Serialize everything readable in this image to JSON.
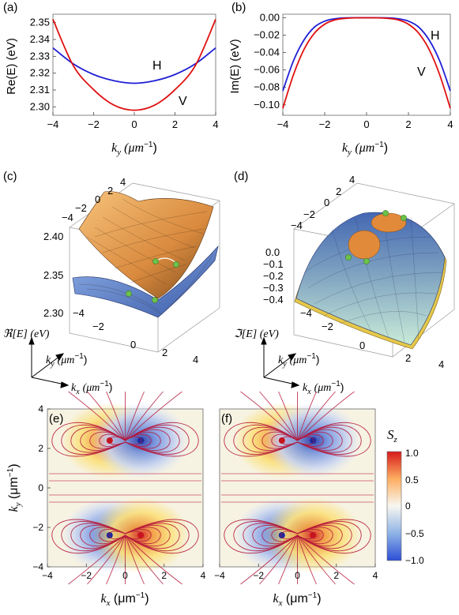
{
  "panels": {
    "a": {
      "label": "(a)",
      "ylabel": "Re(E) (eV)",
      "xlabel": "k",
      "xsub": "y",
      "xunit": "(μm",
      "xexp": "−1",
      "curve_labels": [
        "H",
        "V"
      ]
    },
    "b": {
      "label": "(b)",
      "ylabel": "Im(E) (eV)",
      "xlabel": "k",
      "xsub": "y",
      "xunit": "(μm",
      "xexp": "−1",
      "curve_labels": [
        "H",
        "V"
      ]
    },
    "c": {
      "label": "(c)",
      "zlabel": "ℜ[E] (eV)",
      "ky_label": "k",
      "ky_sub": "y",
      "kx_label": "k",
      "kx_sub": "x",
      "unit": "(μm",
      "exp": "−1",
      "z_ticks": [
        "2.40",
        "2.35",
        "2.30"
      ],
      "top_ticks": [
        "4",
        "2",
        "0",
        "−2",
        "−4"
      ],
      "front_ticks": [
        "−4",
        "−2",
        "0",
        "2",
        "4"
      ]
    },
    "d": {
      "label": "(d)",
      "zlabel": "ℑ[E] (eV)",
      "ky_label": "k",
      "ky_sub": "y",
      "kx_label": "k",
      "kx_sub": "x",
      "unit": "(μm",
      "exp": "−1",
      "z_ticks": [
        "0.0",
        "−0.1",
        "−0.2",
        "−0.3",
        "−0.4"
      ],
      "top_ticks": [
        "4",
        "2",
        "0",
        "−2",
        "−4"
      ],
      "front_ticks": [
        "−4",
        "−2",
        "0",
        "2",
        "4"
      ]
    },
    "e": {
      "label": "(e)",
      "ylabel": "k",
      "ysub": "y",
      "xlabel": "k",
      "xsub": "x",
      "unit": "(μm",
      "exp": "−1"
    },
    "f": {
      "label": "(f)",
      "xlabel": "k",
      "xsub": "x",
      "unit": "(μm",
      "exp": "−1"
    },
    "colorbar": {
      "title": "S",
      "sub": "z",
      "ticks": [
        "1.0",
        "0.5",
        "0",
        "−0.5",
        "−1.0"
      ],
      "colors": [
        "#d7191c",
        "#fdae61",
        "#ffffbf",
        "#abd9e9",
        "#2c7bb6"
      ]
    }
  },
  "chart_data": [
    {
      "type": "line",
      "panel": "a",
      "x": [
        -4,
        -3,
        -2,
        -1,
        0,
        1,
        2,
        3,
        4
      ],
      "xlim": [
        -4,
        4
      ],
      "ylim": [
        2.295,
        2.355
      ],
      "yticks": [
        "2.35",
        "2.34",
        "2.33",
        "2.32",
        "2.31",
        "2.30"
      ],
      "xticks": [
        "−4",
        "−2",
        "0",
        "2",
        "4"
      ],
      "series": [
        {
          "name": "H",
          "color": "#1f1fd6",
          "values": [
            2.335,
            2.3255,
            2.3192,
            2.3155,
            2.314,
            2.3155,
            2.3192,
            2.3255,
            2.335
          ]
        },
        {
          "name": "V",
          "color": "#e01010",
          "values": [
            2.352,
            2.3245,
            2.3102,
            2.301,
            2.298,
            2.301,
            2.3102,
            2.3245,
            2.352
          ]
        }
      ]
    },
    {
      "type": "line",
      "panel": "b",
      "x": [
        -4,
        -3.5,
        -3,
        -2.5,
        -2,
        -1.5,
        -1,
        0,
        1,
        1.5,
        2,
        2.5,
        3,
        3.5,
        4
      ],
      "xlim": [
        -4,
        4
      ],
      "ylim": [
        -0.112,
        0.004
      ],
      "yticks": [
        "0.00",
        "−0.02",
        "−0.04",
        "−0.06",
        "−0.08",
        "−0.10"
      ],
      "xticks": [
        "−4",
        "−2",
        "0",
        "2",
        "4"
      ],
      "series": [
        {
          "name": "H",
          "color": "#1f1fd6",
          "values": [
            -0.084,
            -0.05,
            -0.026,
            -0.011,
            -0.004,
            -0.0012,
            -0.0002,
            0,
            -0.0002,
            -0.0012,
            -0.004,
            -0.011,
            -0.026,
            -0.05,
            -0.084
          ]
        },
        {
          "name": "V",
          "color": "#e01010",
          "values": [
            -0.104,
            -0.066,
            -0.037,
            -0.018,
            -0.0075,
            -0.0025,
            -0.0007,
            -0.0001,
            -0.0007,
            -0.0025,
            -0.0075,
            -0.018,
            -0.037,
            -0.066,
            -0.104
          ]
        }
      ]
    },
    {
      "type": "heatmap",
      "panel": "e",
      "xlim": [
        -4,
        4
      ],
      "ylim": [
        -4,
        4
      ],
      "xticks": [
        "−4",
        "−2",
        "0",
        "2",
        "4"
      ],
      "yticks": [
        "4",
        "2",
        "0",
        "−2",
        "−4"
      ],
      "spots": [
        {
          "x": -0.8,
          "y": 2.4,
          "value": 1.0
        },
        {
          "x": 0.8,
          "y": 2.4,
          "value": -1.0
        },
        {
          "x": -0.8,
          "y": -2.4,
          "value": -1.0
        },
        {
          "x": 0.8,
          "y": -2.4,
          "value": 1.0
        }
      ]
    },
    {
      "type": "heatmap",
      "panel": "f",
      "xlim": [
        -4,
        4
      ],
      "ylim": [
        -4,
        4
      ],
      "xticks": [
        "−4",
        "−2",
        "0",
        "2",
        "4"
      ],
      "spots": [
        {
          "x": -0.8,
          "y": 2.4,
          "value": 1.0
        },
        {
          "x": 0.8,
          "y": 2.4,
          "value": -1.0
        },
        {
          "x": -0.8,
          "y": -2.4,
          "value": -1.0
        },
        {
          "x": 0.8,
          "y": -2.4,
          "value": 1.0
        }
      ]
    }
  ]
}
